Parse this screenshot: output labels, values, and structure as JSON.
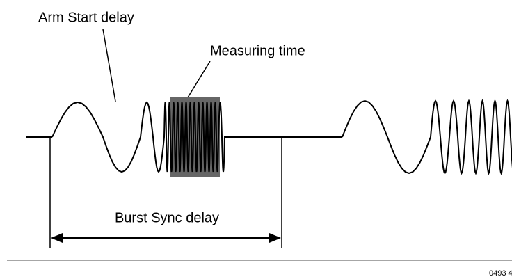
{
  "labels": {
    "arm_start_delay": "Arm Start delay",
    "measuring_time": "Measuring time",
    "burst_sync_delay": "Burst Sync delay",
    "figure_id": "0493 4"
  }
}
